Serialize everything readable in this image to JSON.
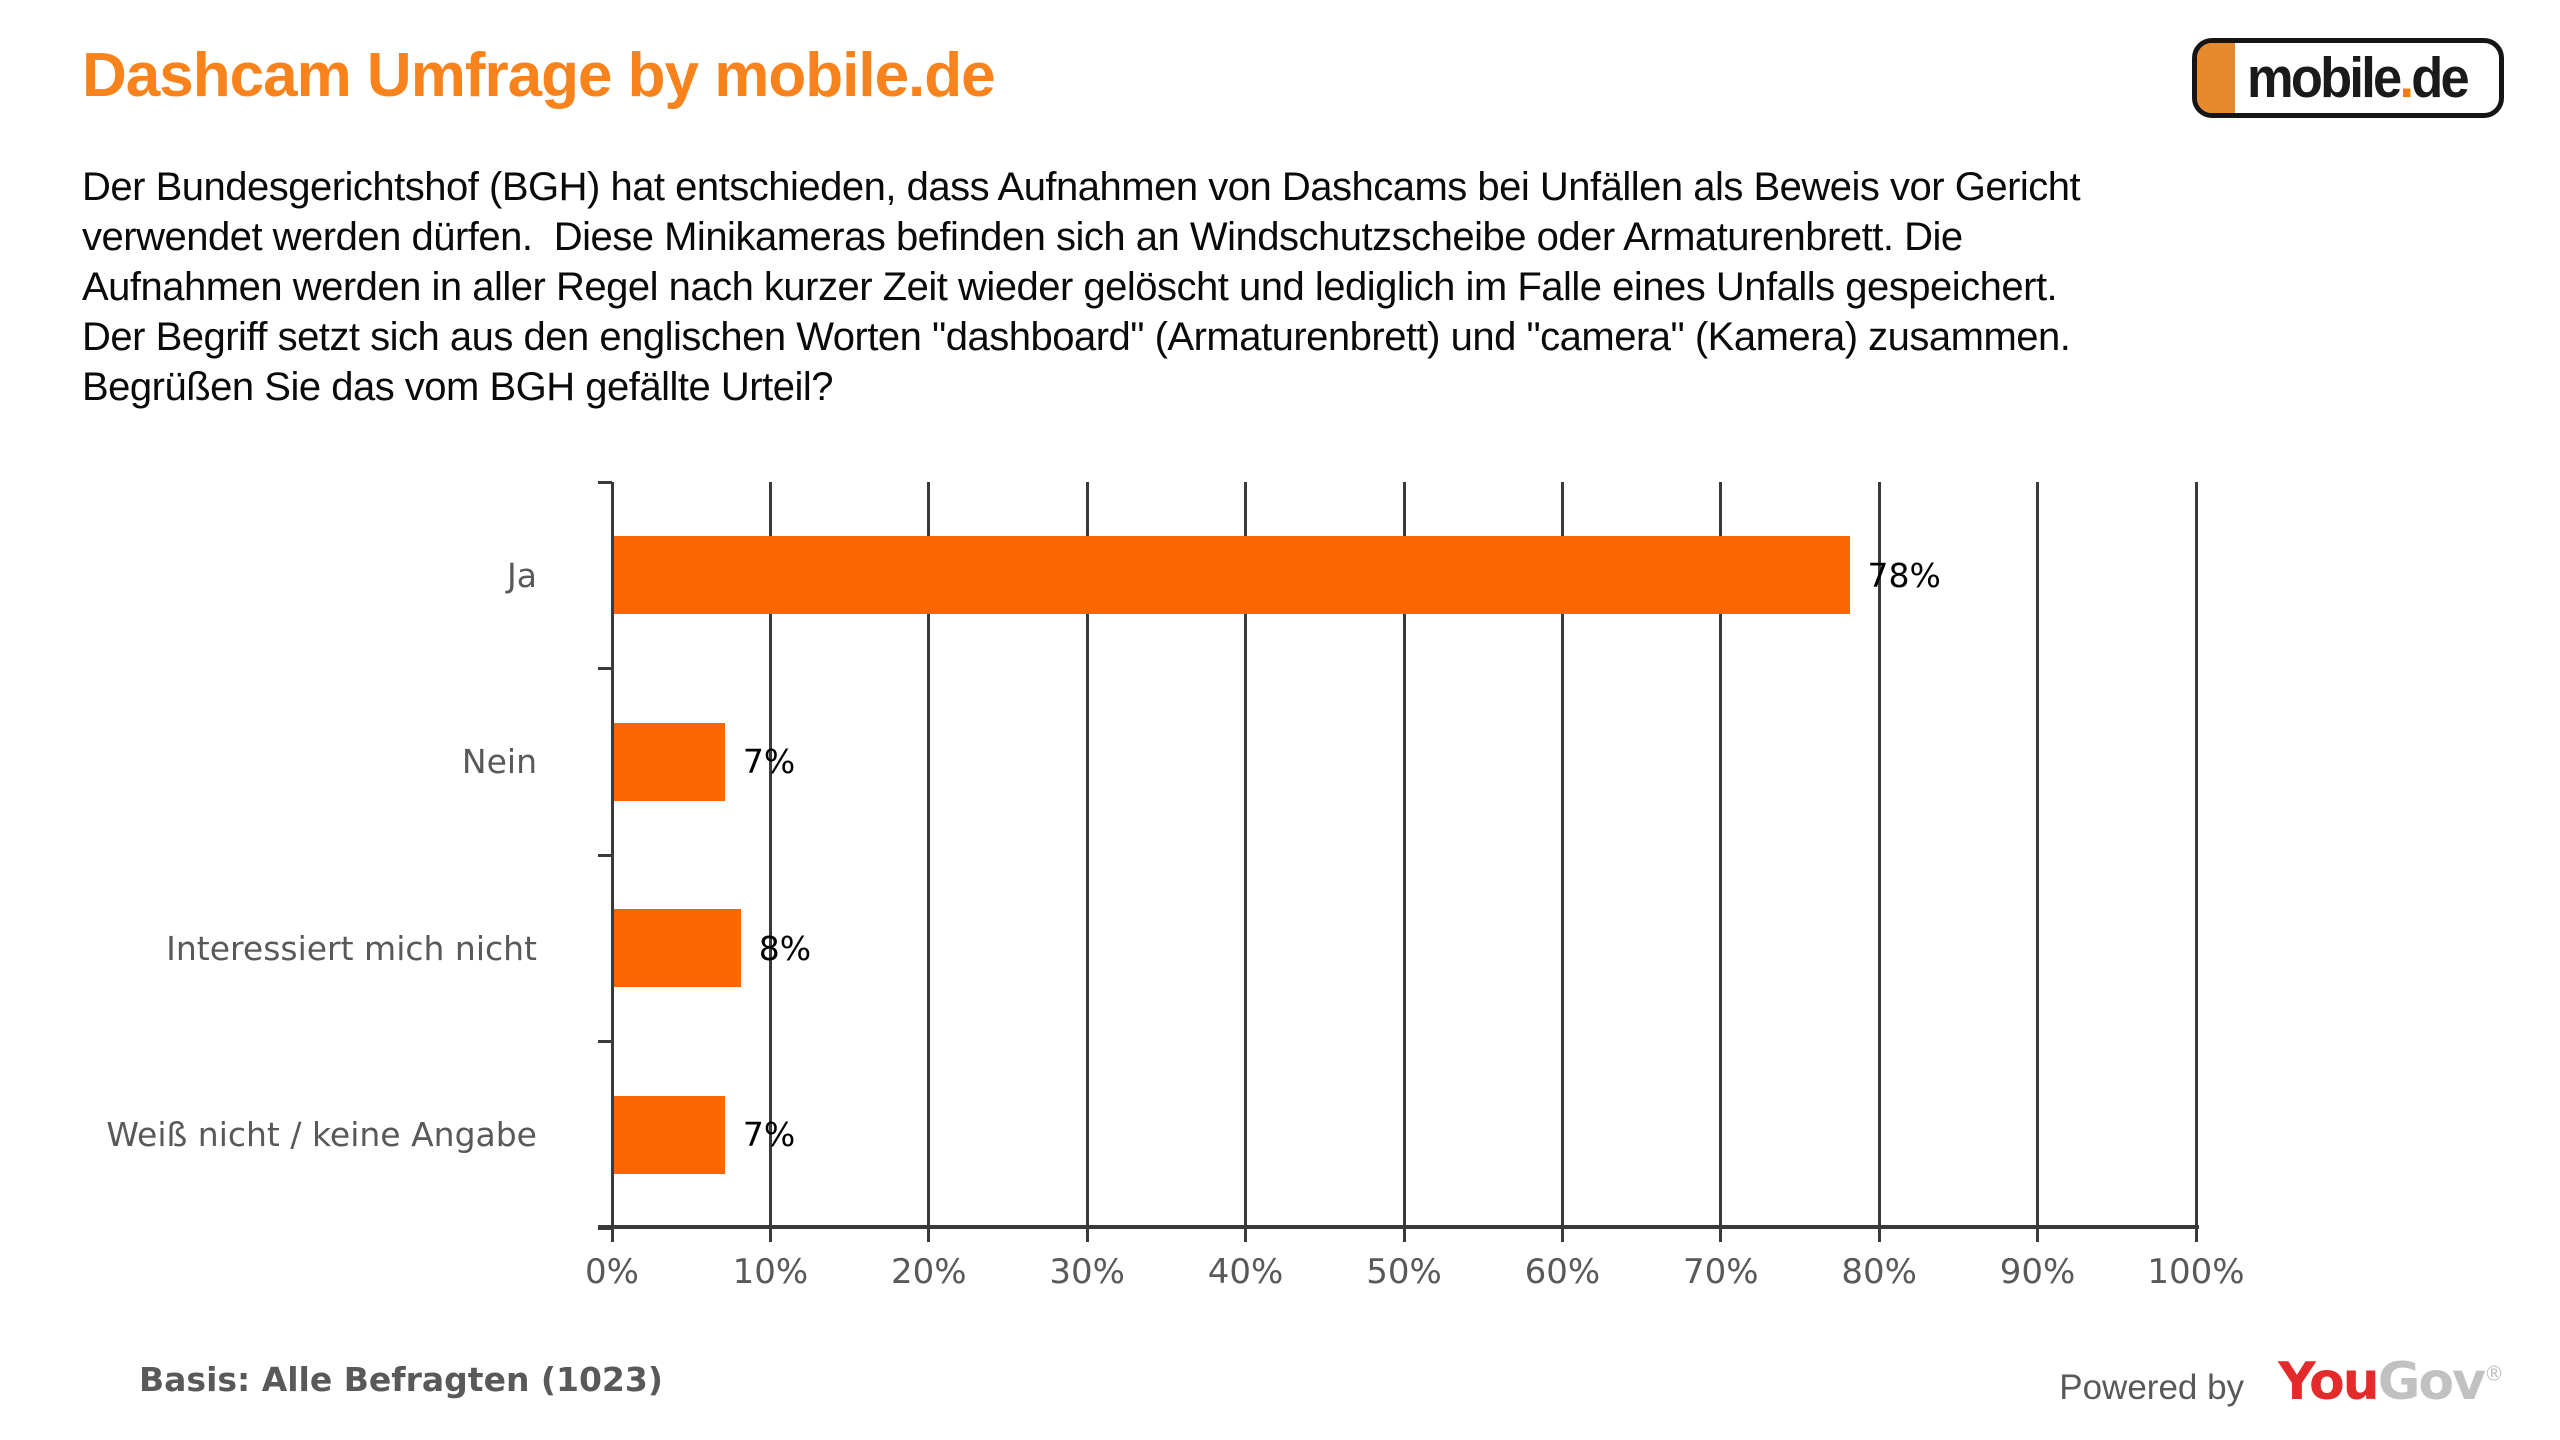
{
  "header": {
    "title": "Dashcam Umfrage by mobile.de",
    "logo": {
      "mobile": "mobile",
      "dot": ".",
      "de": "de"
    }
  },
  "intro": {
    "lines": [
      "Der Bundesgerichtshof (BGH) hat entschieden, dass Aufnahmen von Dashcams bei Unfällen als Beweis vor Gericht",
      "verwendet werden dürfen.  Diese Minikameras befinden sich an Windschutzscheibe oder Armaturenbrett. Die",
      "Aufnahmen werden in aller Regel nach kurzer Zeit wieder gelöscht und lediglich im Falle eines Unfalls gespeichert.",
      "Der Begriff setzt sich aus den englischen Worten \"dashboard\" (Armaturenbrett) und \"camera\" (Kamera) zusammen.",
      "Begrüßen Sie das vom BGH gefällte Urteil?"
    ]
  },
  "chart_data": {
    "type": "bar",
    "orientation": "horizontal",
    "title": "Begrüßen Sie das vom BGH gefällte Urteil?",
    "categories": [
      "Ja",
      "Nein",
      "Interessiert mich nicht",
      "Weiß nicht / keine Angabe"
    ],
    "values": [
      78,
      7,
      8,
      7
    ],
    "value_labels": [
      "78%",
      "7%",
      "8%",
      "7%"
    ],
    "xlim": [
      0,
      100
    ],
    "x_tick_step": 10,
    "x_ticks": [
      "0%",
      "10%",
      "20%",
      "30%",
      "40%",
      "50%",
      "60%",
      "70%",
      "80%",
      "90%",
      "100%"
    ],
    "grid": true,
    "legend": false,
    "bar_color": "#FB6602"
  },
  "footer": {
    "basis": "Basis: Alle Befragten (1023)",
    "powered_by": "Powered by",
    "yougov": {
      "you": "You",
      "gov": "Gov",
      "registered": "®"
    }
  },
  "colors": {
    "title_orange": "#F8831C",
    "bar_orange": "#FB6602",
    "logo_block_orange": "#E78A2D",
    "logo_dot_orange": "#EF7D00",
    "label_gray": "#595959",
    "grid_dark": "#3A3A3A",
    "yougov_red": "#E32B2B",
    "yougov_gray": "#C1C1C1"
  }
}
